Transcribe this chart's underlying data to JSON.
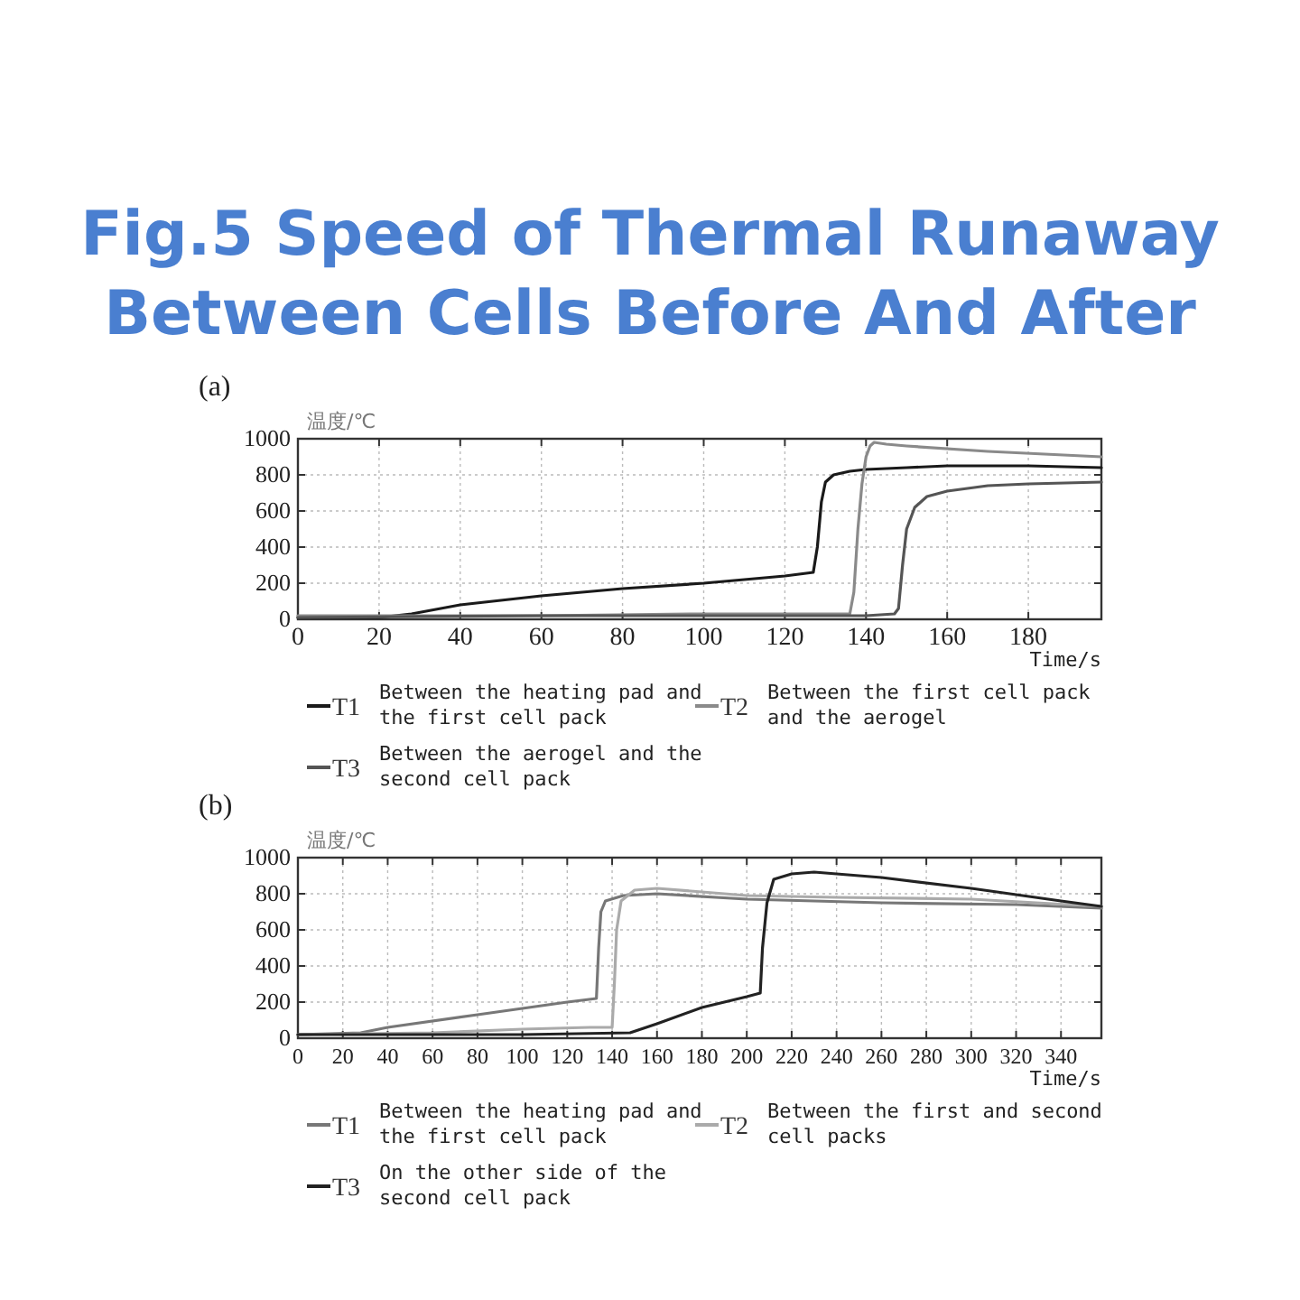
{
  "chart_data": [
    {
      "type": "line",
      "title": "Fig.5 Speed of Thermal Runaway Between Cells Before And After",
      "subtitle": "(a)",
      "xlabel": "Time/s",
      "ylabel": "温度/℃",
      "xlim": [
        0,
        198
      ],
      "ylim": [
        0,
        1000
      ],
      "xticks": [
        0,
        20,
        40,
        60,
        80,
        100,
        120,
        140,
        160,
        180
      ],
      "yticks": [
        0,
        200,
        400,
        600,
        800,
        1000
      ],
      "grid": true,
      "legend": "bottom",
      "series": [
        {
          "name": "T1 Between the heating pad and the first cell pack",
          "color": "#1a1a1a",
          "x": [
            0,
            20,
            28,
            40,
            60,
            80,
            100,
            120,
            127,
            128,
            129,
            130,
            132,
            136,
            140,
            150,
            160,
            180,
            198
          ],
          "values": [
            10,
            10,
            30,
            80,
            130,
            170,
            200,
            240,
            260,
            400,
            650,
            760,
            800,
            820,
            830,
            840,
            850,
            850,
            840
          ]
        },
        {
          "name": "T2 Between the first cell pack and the aerogel",
          "color": "#8a8a8a",
          "x": [
            0,
            20,
            60,
            100,
            130,
            136,
            137,
            138,
            139,
            140,
            141,
            142,
            145,
            150,
            170,
            198
          ],
          "values": [
            20,
            20,
            20,
            30,
            30,
            30,
            150,
            500,
            750,
            900,
            960,
            980,
            970,
            960,
            930,
            900
          ]
        },
        {
          "name": "T3 Between the aerogel and the second cell pack",
          "color": "#555555",
          "x": [
            0,
            60,
            100,
            140,
            147,
            148,
            149,
            150,
            152,
            155,
            160,
            170,
            180,
            198
          ],
          "values": [
            10,
            20,
            20,
            20,
            30,
            60,
            300,
            500,
            620,
            680,
            710,
            740,
            750,
            760
          ]
        }
      ]
    },
    {
      "type": "line",
      "subtitle": "(b)",
      "xlabel": "Time/s",
      "ylabel": "温度/℃",
      "xlim": [
        0,
        358
      ],
      "ylim": [
        0,
        1000
      ],
      "xticks": [
        0,
        20,
        40,
        60,
        80,
        100,
        120,
        140,
        160,
        180,
        200,
        220,
        240,
        260,
        280,
        300,
        320,
        340
      ],
      "yticks": [
        0,
        200,
        400,
        600,
        800,
        1000
      ],
      "grid": true,
      "legend": "bottom",
      "series": [
        {
          "name": "T1 Between the heating pad and the first cell pack",
          "color": "#777777",
          "x": [
            0,
            28,
            40,
            80,
            120,
            133,
            134,
            135,
            137,
            145,
            160,
            200,
            260,
            320,
            358
          ],
          "values": [
            20,
            30,
            60,
            130,
            200,
            220,
            500,
            700,
            760,
            790,
            800,
            770,
            750,
            740,
            720
          ]
        },
        {
          "name": "T2 Between the first and second cell packs",
          "color": "#aaaaaa",
          "x": [
            0,
            60,
            100,
            130,
            140,
            141,
            142,
            144,
            150,
            160,
            200,
            240,
            300,
            358
          ],
          "values": [
            20,
            30,
            50,
            60,
            60,
            300,
            600,
            760,
            820,
            830,
            790,
            780,
            770,
            730
          ]
        },
        {
          "name": "T3 On the other side of the second cell pack",
          "color": "#222222",
          "x": [
            0,
            100,
            148,
            160,
            180,
            200,
            206,
            207,
            209,
            212,
            220,
            230,
            260,
            300,
            340,
            358
          ],
          "values": [
            20,
            20,
            30,
            80,
            170,
            230,
            250,
            500,
            750,
            880,
            910,
            920,
            890,
            830,
            760,
            730
          ]
        }
      ]
    }
  ]
}
